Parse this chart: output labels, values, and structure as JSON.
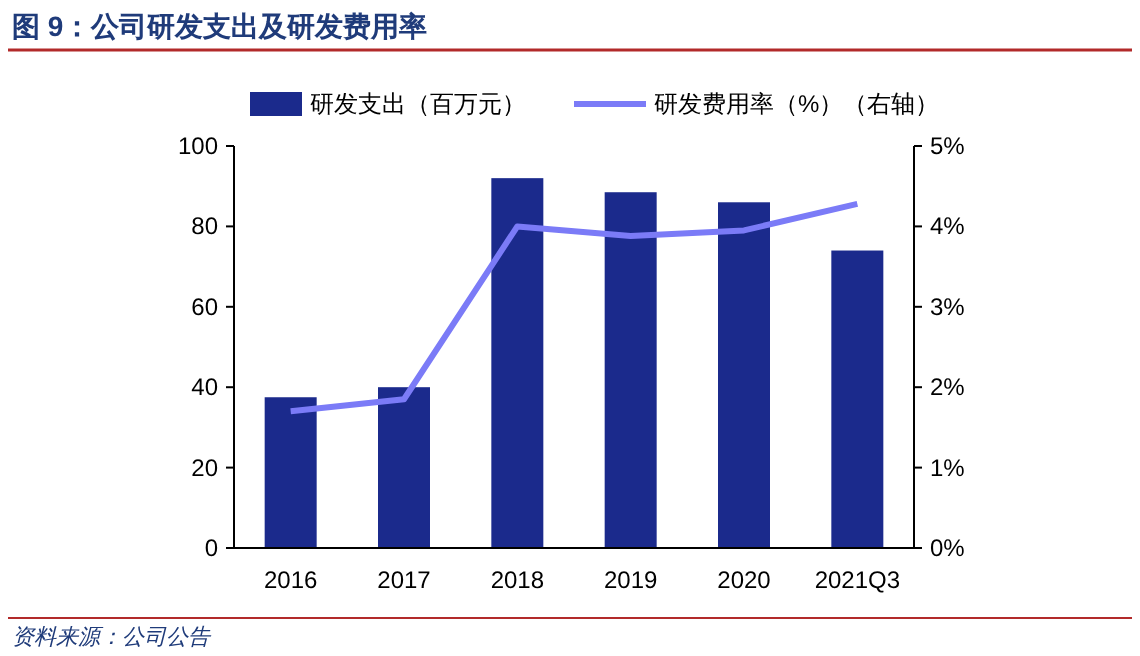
{
  "chart_data": {
    "type": "bar",
    "title": "图 9：公司研发支出及研发费用率",
    "annotations": [
      "资料来源：公司公告"
    ],
    "categories": [
      "2016",
      "2017",
      "2018",
      "2019",
      "2020",
      "2021Q3"
    ],
    "series": [
      {
        "name": "研发支出（百万元）",
        "color": "#1b2a8c",
        "values": [
          37.5,
          40,
          92,
          88.5,
          86,
          74
        ]
      },
      {
        "name": "研发费用率（%）（右轴）",
        "type": "line",
        "axis": "y2",
        "color": "#7b7bf7",
        "values": [
          1.7,
          1.85,
          4.0,
          3.88,
          3.95,
          4.28
        ]
      }
    ],
    "ylim": [
      0,
      100
    ],
    "yticks": [
      0,
      20,
      40,
      60,
      80,
      100
    ],
    "y2lim": [
      0,
      5
    ],
    "y2ticks": [
      {
        "value": 0,
        "label": "0%"
      },
      {
        "value": 1,
        "label": "1%"
      },
      {
        "value": 2,
        "label": "2%"
      },
      {
        "value": 3,
        "label": "3%"
      },
      {
        "value": 4,
        "label": "4%"
      },
      {
        "value": 5,
        "label": "5%"
      }
    ],
    "legend": "top",
    "line_style": "solid",
    "marker": "none",
    "grid": false
  }
}
